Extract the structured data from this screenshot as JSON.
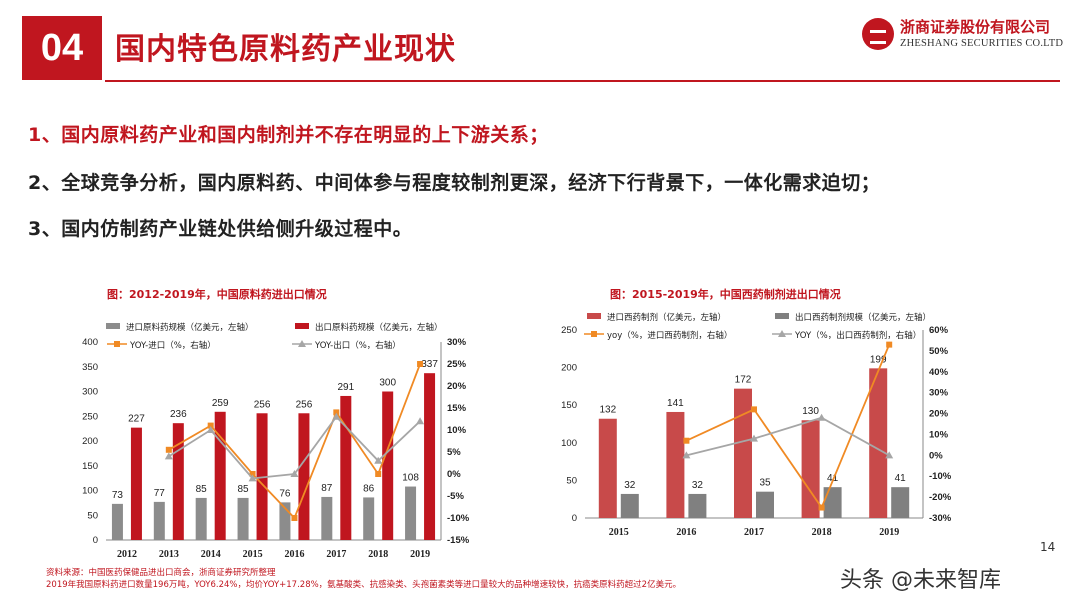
{
  "header": {
    "section_number": "04",
    "title": "国内特色原料药产业现状",
    "company_cn": "浙商证券股份有限公司",
    "company_en": "ZHESHANG SECURITIES CO.LTD"
  },
  "points": [
    "1、国内原料药产业和国内制剂并不存在明显的上下游关系；",
    "2、全球竞争分析，国内原料药、中间体参与程度较制剂更深，经济下行背景下，一体化需求迫切；",
    "3、国内仿制药产业链处供给侧升级过程中。"
  ],
  "chart_titles": [
    "图：2012-2019年，中国原料药进出口情况",
    "图：2015-2019年，中国西药制剂进出口情况"
  ],
  "chart_data": [
    {
      "type": "bar",
      "title": "图：2012-2019年，中国原料药进出口情况",
      "categories": [
        "2012",
        "2013",
        "2014",
        "2015",
        "2016",
        "2017",
        "2018",
        "2019"
      ],
      "series": [
        {
          "name": "进口原料药规模（亿美元，左轴）",
          "type": "bar",
          "color": "#8c8c8c",
          "values": [
            73,
            77,
            85,
            85,
            76,
            87,
            86,
            108
          ]
        },
        {
          "name": "出口原料药规模（亿美元，左轴）",
          "type": "bar",
          "color": "#c0161f",
          "values": [
            227,
            236,
            259,
            256,
            256,
            291,
            300,
            337
          ]
        },
        {
          "name": "YOY-进口（%，右轴）",
          "type": "line",
          "color": "#f08a24",
          "values": [
            null,
            5.5,
            11,
            0,
            -10,
            14,
            0,
            25
          ]
        },
        {
          "name": "YOY-出口（%，右轴）",
          "type": "line",
          "color": "#a6a6a6",
          "values": [
            null,
            4,
            10,
            -1,
            0,
            13,
            3,
            12
          ]
        }
      ],
      "ylim_left": [
        0,
        400
      ],
      "yticks_left": [
        "0",
        "50",
        "100",
        "150",
        "200",
        "250",
        "300",
        "350",
        "400"
      ],
      "ylim_right": [
        -15,
        30
      ],
      "yticks_right": [
        "-15%",
        "-10%",
        "-5%",
        "0%",
        "5%",
        "10%",
        "15%",
        "20%",
        "25%",
        "30%"
      ],
      "bar_labels": {
        "import": [
          "73",
          "77",
          "85",
          "85",
          "76",
          "87",
          "86",
          "108"
        ],
        "export": [
          "227",
          "236",
          "259",
          "256",
          "256",
          "291",
          "300",
          "337"
        ]
      }
    },
    {
      "type": "bar",
      "title": "图：2015-2019年，中国西药制剂进出口情况",
      "categories": [
        "2015",
        "2016",
        "2017",
        "2018",
        "2019"
      ],
      "series": [
        {
          "name": "进口西药制剂（亿美元，左轴）",
          "type": "bar",
          "color": "#c84a4a",
          "values": [
            132,
            141,
            172,
            130,
            199
          ]
        },
        {
          "name": "出口西药制剂规模（亿美元，左轴）",
          "type": "bar",
          "color": "#808080",
          "values": [
            32,
            32,
            35,
            41,
            41
          ]
        },
        {
          "name": "yoy（%，进口西药制剂，右轴）",
          "type": "line",
          "color": "#f08a24",
          "values": [
            null,
            7,
            22,
            -25,
            53
          ]
        },
        {
          "name": "YOY（%，出口西药制剂，右轴）",
          "type": "line",
          "color": "#a6a6a6",
          "values": [
            null,
            0,
            8,
            18,
            0
          ]
        }
      ],
      "ylim_left": [
        0,
        250
      ],
      "yticks_left": [
        "0",
        "50",
        "100",
        "150",
        "200",
        "250"
      ],
      "ylim_right": [
        -30,
        60
      ],
      "yticks_right": [
        "-30%",
        "-20%",
        "-10%",
        "0%",
        "10%",
        "20%",
        "30%",
        "40%",
        "50%",
        "60%"
      ],
      "bar_labels": {
        "import": [
          "132",
          "141",
          "172",
          "130",
          "199"
        ],
        "export": [
          "32",
          "32",
          "35",
          "41",
          "41"
        ]
      }
    }
  ],
  "source_notes": [
    "资料来源：中国医药保健品进出口商会，浙商证券研究所整理",
    "2019年我国原料药进口数量196万吨，YOY6.24%，均价YOY+17.28%，氨基酸类、抗感染类、头孢菌素类等进口量较大的品种增速较快，抗癌类原料药超过2亿美元。"
  ],
  "page_number": "14",
  "watermark": "头条 @未来智库",
  "colors": {
    "brand_red": "#c0161f"
  }
}
